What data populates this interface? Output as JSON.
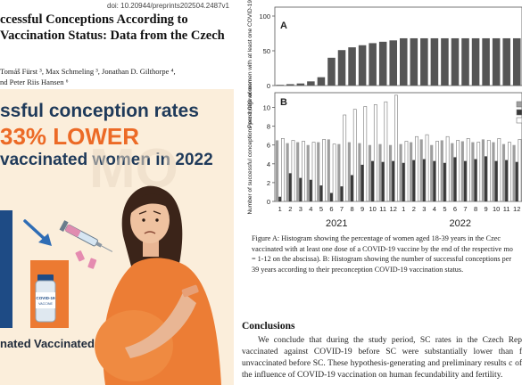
{
  "poster": {
    "doi": "doi: 10.20944/preprints202504.2487v1",
    "title": "ccessful Conceptions According to Vaccination Status: Data from the Czech",
    "authors_line1": "Tomáš Fürst ³, Max Schmeling ³, Jonathan D. Gilthorpe ⁴,",
    "authors_line2": "nd Peter Riis Hansen ⁶",
    "headline_line1": "ssful conception rates",
    "headline_line2": "33% LOWER",
    "headline_line3": "vaccinated women in 2022",
    "label_unvaccinated": "nated",
    "label_vaccinated": "Vaccinated",
    "vial_label": "COVID-19",
    "vial_sublabel": "VACCINE",
    "colors": {
      "accent_orange": "#ec6a26",
      "navy": "#1f3a5a",
      "bar_blue": "#1e4b85",
      "background": "#fbeedb"
    }
  },
  "chart_data": [
    {
      "type": "bar",
      "panel_label": "A",
      "ylabel": "Percentage of women with at least one COVID-19 vaccine dose",
      "ylim": [
        0,
        100
      ],
      "yticks": [
        "0",
        "50",
        "100"
      ],
      "values": [
        1,
        2,
        3,
        6,
        12,
        40,
        51,
        55,
        58,
        61,
        63,
        65,
        68,
        68,
        68,
        68,
        68,
        68,
        68,
        68,
        68,
        68,
        68,
        68
      ]
    },
    {
      "type": "bar",
      "panel_label": "B",
      "ylabel": "Number of successful conceptions per 1,000 women",
      "ylim": [
        0,
        11
      ],
      "yticks": [
        "0",
        "2",
        "4",
        "6",
        "8",
        "10"
      ],
      "categories": [
        "1",
        "2",
        "3",
        "4",
        "5",
        "6",
        "7",
        "8",
        "9",
        "10",
        "11",
        "12",
        "1",
        "2",
        "3",
        "4",
        "5",
        "6",
        "7",
        "8",
        "9",
        "10",
        "11",
        "12"
      ],
      "year_labels": [
        "2021",
        "2022"
      ],
      "series": [
        {
          "values": [
            6.5,
            6.2,
            6.3,
            6.0,
            6.3,
            6.6,
            6.1,
            6.3,
            6.2,
            6.0,
            6.1,
            6.0,
            6.1,
            6.3,
            6.6,
            6.0,
            6.5,
            6.2,
            6.4,
            6.3,
            6.6,
            6.3,
            6.1,
            6.0
          ]
        },
        {
          "values": [
            0.5,
            3.0,
            2.5,
            2.3,
            1.7,
            0.9,
            1.6,
            2.8,
            3.9,
            4.3,
            4.2,
            4.3,
            4.1,
            4.4,
            4.5,
            4.3,
            4.1,
            4.7,
            4.3,
            4.5,
            4.8,
            4.3,
            4.4,
            4.2
          ]
        },
        {
          "values": [
            6.7,
            6.5,
            6.4,
            6.3,
            6.6,
            6.1,
            9.2,
            9.8,
            10.1,
            10.3,
            10.6,
            11.3,
            6.4,
            6.9,
            7.1,
            6.4,
            6.9,
            6.5,
            6.7,
            6.3,
            6.5,
            6.7,
            6.3,
            6.6
          ]
        }
      ],
      "colors": {
        "series1": "#9e9e9e",
        "series2": "#3a3a3a",
        "series3": "#ffffff"
      }
    }
  ],
  "figure": {
    "caption_lines": [
      "Figure A: Histogram showing the percentage of women aged 18-39 years in the Czec",
      "vaccinated with at least one dose of a COVID-19 vaccine by the end of the respective mo",
      "= 1-12 on the abscissa). B: Histogram showing the number of successful conceptions per",
      "39 years according to their preconception COVID-19 vaccination status."
    ]
  },
  "conclusions": {
    "title": "Conclusions",
    "body": "We conclude that during the study period, SC rates in the Czech Rep vaccinated against COVID-19 before SC were substantially lower than f unvaccinated before SC. These hypothesis-generating and preliminary results c of the influence of COVID-19 vaccination on human fecundability and fertility."
  }
}
